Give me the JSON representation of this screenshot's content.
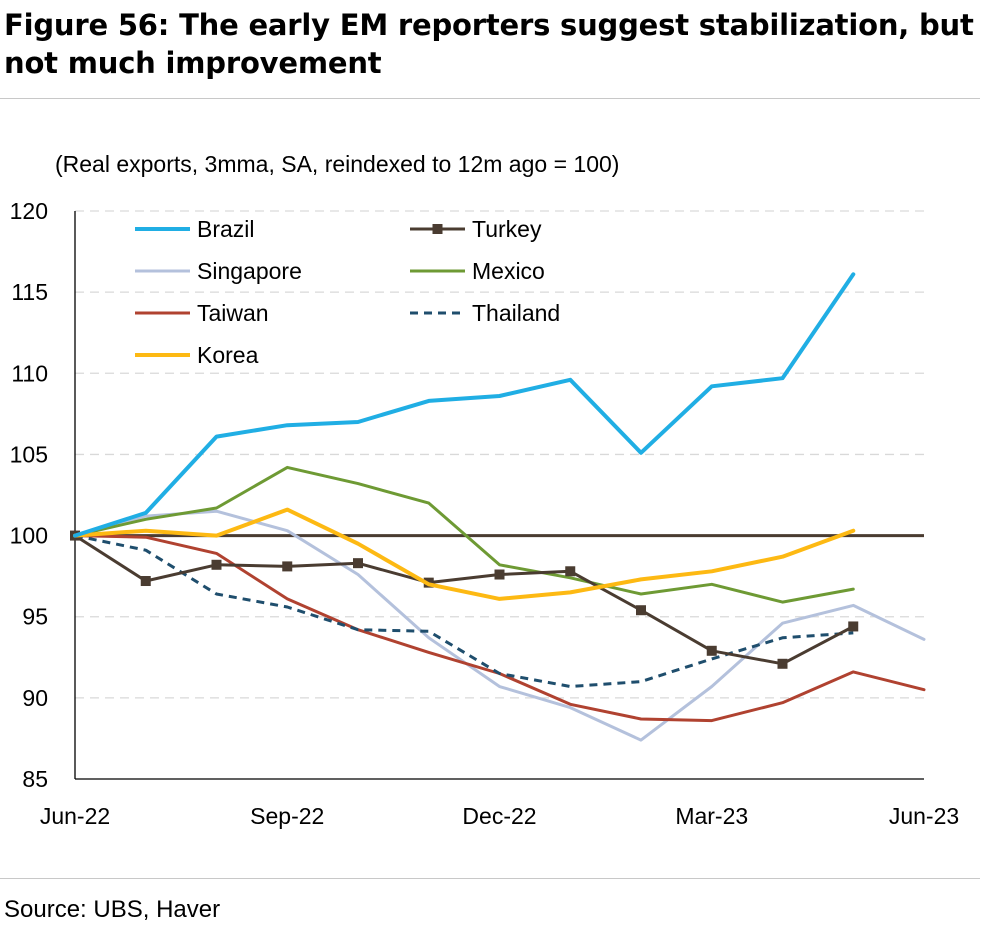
{
  "title": "Figure 56: The early EM reporters suggest stabilization, but not much improvement",
  "source": "Source: UBS, Haver",
  "chart_data": {
    "type": "line",
    "subtitle": "(Real exports, 3mma, SA, reindexed to 12m ago = 100)",
    "x": [
      "2022-06",
      "2022-07",
      "2022-08",
      "2022-09",
      "2022-10",
      "2022-11",
      "2022-12",
      "2023-01",
      "2023-02",
      "2023-03",
      "2023-04",
      "2023-05",
      "2023-06"
    ],
    "x_tick_labels": [
      "Jun-22",
      "Sep-22",
      "Dec-22",
      "Mar-23",
      "Jun-23"
    ],
    "x_tick_positions": [
      "2022-06",
      "2022-09",
      "2022-12",
      "2023-03",
      "2023-06"
    ],
    "ylim": [
      85,
      120
    ],
    "y_ticks": [
      85,
      90,
      95,
      100,
      105,
      110,
      115,
      120
    ],
    "grid": "horizontal-dashed",
    "legend_placement": "top-left",
    "reference_line": {
      "value": 100,
      "color": "#4a3c31"
    },
    "series": [
      {
        "name": "Brazil",
        "color": "#20aee4",
        "style": "solid",
        "marker": "none",
        "values": [
          100,
          101.4,
          106.1,
          106.8,
          107.0,
          108.3,
          108.6,
          109.6,
          105.1,
          109.2,
          109.7,
          116.1,
          null
        ]
      },
      {
        "name": "Turkey",
        "color": "#4a3c31",
        "style": "solid",
        "marker": "square",
        "values": [
          100,
          97.2,
          98.2,
          98.1,
          98.3,
          97.1,
          97.6,
          97.8,
          95.4,
          92.9,
          92.1,
          94.4,
          null
        ]
      },
      {
        "name": "Singapore",
        "color": "#b4c1dc",
        "style": "solid",
        "marker": "none",
        "values": [
          100,
          101.2,
          101.5,
          100.3,
          97.6,
          93.7,
          90.7,
          89.4,
          87.4,
          90.7,
          94.6,
          95.7,
          93.6
        ]
      },
      {
        "name": "Mexico",
        "color": "#6e9a34",
        "style": "solid",
        "marker": "none",
        "values": [
          100,
          101.0,
          101.7,
          104.2,
          103.2,
          102.0,
          98.2,
          97.4,
          96.4,
          97.0,
          95.9,
          96.7,
          null
        ]
      },
      {
        "name": "Taiwan",
        "color": "#b04230",
        "style": "solid",
        "marker": "none",
        "values": [
          100,
          99.9,
          98.9,
          96.1,
          94.2,
          92.8,
          91.5,
          89.6,
          88.7,
          88.6,
          89.7,
          91.6,
          90.5
        ]
      },
      {
        "name": "Thailand",
        "color": "#1f4e6d",
        "style": "dashed",
        "marker": "none",
        "values": [
          100,
          99.1,
          96.4,
          95.6,
          94.2,
          94.1,
          91.5,
          90.7,
          91.0,
          92.4,
          93.7,
          94.0,
          null
        ]
      },
      {
        "name": "Korea",
        "color": "#fdb913",
        "style": "solid",
        "marker": "none",
        "values": [
          100,
          100.3,
          100.0,
          101.6,
          99.5,
          97.0,
          96.1,
          96.5,
          97.3,
          97.8,
          98.7,
          100.3,
          null
        ]
      }
    ]
  }
}
